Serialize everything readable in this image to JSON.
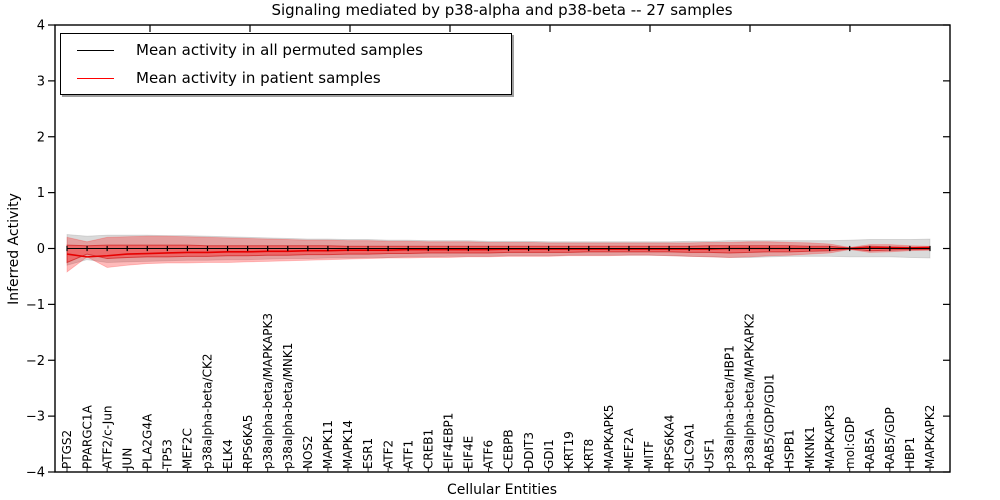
{
  "title": "Signaling mediated by p38-alpha and p38-beta -- 27 samples",
  "axes": {
    "ylabel": "Inferred Activity",
    "xlabel": "Cellular Entities",
    "yticks": [
      4,
      3,
      2,
      1,
      0,
      -1,
      -2,
      -3,
      -4
    ],
    "ylim": [
      -4,
      4
    ]
  },
  "legend": {
    "items": [
      {
        "label": "Mean activity in all permuted samples",
        "color": "#000000"
      },
      {
        "label": "Mean activity in patient samples",
        "color": "#ff0000"
      }
    ],
    "position": "upper left"
  },
  "colors": {
    "permuted_line": "#000000",
    "patient_line": "#e60000",
    "patient_band_fill": "rgba(255,0,0,0.27)",
    "patient_band_inner_fill": "rgba(255,0,0,0.33)",
    "patient_band_inner_stroke": "rgba(200,0,0,0.55)",
    "permuted_band_fill": "rgba(150,150,150,0.35)",
    "spine": "#000000"
  },
  "chart_data": {
    "type": "line",
    "title": "Signaling mediated by p38-alpha and p38-beta -- 27 samples",
    "xlabel": "Cellular Entities",
    "ylabel": "Inferred Activity",
    "ylim": [
      -4,
      4
    ],
    "grid": false,
    "legend_position": "upper left",
    "categories": [
      "PTGS2",
      "PPARGC1A",
      "ATF2/c-Jun",
      "JUN",
      "PLA2G4A",
      "TP53",
      "MEF2C",
      "p38alpha-beta/CK2",
      "ELK4",
      "RPS6KA5",
      "p38alpha-beta/MAPKAPK3",
      "p38alpha-beta/MNK1",
      "NOS2",
      "MAPK11",
      "MAPK14",
      "ESR1",
      "ATF2",
      "ATF1",
      "CREB1",
      "EIF4EBP1",
      "EIF4E",
      "ATF6",
      "CEBPB",
      "DDIT3",
      "GDI1",
      "KRT19",
      "KRT8",
      "MAPKAPK5",
      "MEF2A",
      "MITF",
      "RPS6KA4",
      "SLC9A1",
      "USF1",
      "p38alpha-beta/HBP1",
      "p38alpha-beta/MAPKAPK2",
      "RAB5/GDP/GDI1",
      "HSPB1",
      "MKNK1",
      "MAPKAPK3",
      "mol:GDP",
      "RAB5A",
      "RAB5/GDP",
      "HBP1",
      "MAPKAPK2"
    ],
    "series": [
      {
        "name": "Mean activity in all permuted samples",
        "marker": "|",
        "values": [
          0,
          0,
          0,
          0,
          0,
          0,
          0,
          0,
          0,
          0,
          0,
          0,
          0,
          0,
          0,
          0,
          0,
          0,
          0,
          0,
          0,
          0,
          0,
          0,
          0,
          0,
          0,
          0,
          0,
          0,
          0,
          0,
          0,
          0,
          0,
          0,
          0,
          0,
          0,
          0,
          0,
          0,
          0,
          0
        ]
      },
      {
        "name": "Mean activity in patient samples",
        "marker": "none",
        "values": [
          -0.1,
          -0.15,
          -0.13,
          -0.1,
          -0.09,
          -0.08,
          -0.07,
          -0.07,
          -0.06,
          -0.06,
          -0.05,
          -0.05,
          -0.04,
          -0.04,
          -0.03,
          -0.03,
          -0.03,
          -0.02,
          -0.02,
          -0.02,
          -0.02,
          -0.02,
          -0.01,
          -0.01,
          -0.01,
          -0.01,
          -0.01,
          -0.01,
          -0.01,
          -0.01,
          -0.01,
          -0.01,
          -0.01,
          0.0,
          0.0,
          0.0,
          0.0,
          0.0,
          0.0,
          0.0,
          0.01,
          0.01,
          0.01,
          0.02
        ]
      }
    ],
    "bands": [
      {
        "name": "permuted-range-band",
        "upper": [
          0.25,
          0.22,
          0.24,
          0.24,
          0.24,
          0.23,
          0.23,
          0.22,
          0.21,
          0.2,
          0.19,
          0.18,
          0.17,
          0.17,
          0.16,
          0.16,
          0.15,
          0.15,
          0.14,
          0.14,
          0.14,
          0.13,
          0.13,
          0.13,
          0.12,
          0.12,
          0.12,
          0.12,
          0.12,
          0.12,
          0.12,
          0.13,
          0.13,
          0.14,
          0.14,
          0.14,
          0.14,
          0.14,
          0.14,
          0.15,
          0.16,
          0.16,
          0.16,
          0.17
        ],
        "lower": [
          -0.3,
          -0.2,
          -0.25,
          -0.24,
          -0.23,
          -0.22,
          -0.21,
          -0.21,
          -0.2,
          -0.2,
          -0.19,
          -0.18,
          -0.18,
          -0.17,
          -0.17,
          -0.16,
          -0.16,
          -0.15,
          -0.15,
          -0.14,
          -0.14,
          -0.14,
          -0.13,
          -0.13,
          -0.13,
          -0.12,
          -0.12,
          -0.12,
          -0.12,
          -0.12,
          -0.13,
          -0.14,
          -0.15,
          -0.16,
          -0.16,
          -0.15,
          -0.14,
          -0.14,
          -0.14,
          -0.15,
          -0.15,
          -0.15,
          -0.16,
          -0.17
        ]
      },
      {
        "name": "patient-range-outer-band",
        "upper": [
          0.2,
          0.12,
          0.2,
          0.21,
          0.22,
          0.22,
          0.21,
          0.2,
          0.19,
          0.18,
          0.17,
          0.16,
          0.15,
          0.15,
          0.14,
          0.14,
          0.13,
          0.13,
          0.12,
          0.12,
          0.12,
          0.11,
          0.11,
          0.11,
          0.1,
          0.1,
          0.1,
          0.1,
          0.1,
          0.1,
          0.1,
          0.1,
          0.11,
          0.11,
          0.12,
          0.12,
          0.11,
          0.1,
          0.08,
          0.02,
          0.07,
          0.07,
          0.05,
          0.04
        ],
        "lower": [
          -0.42,
          -0.15,
          -0.34,
          -0.3,
          -0.27,
          -0.26,
          -0.26,
          -0.25,
          -0.25,
          -0.24,
          -0.23,
          -0.22,
          -0.21,
          -0.2,
          -0.19,
          -0.18,
          -0.17,
          -0.17,
          -0.16,
          -0.16,
          -0.15,
          -0.15,
          -0.14,
          -0.14,
          -0.14,
          -0.13,
          -0.13,
          -0.13,
          -0.12,
          -0.12,
          -0.13,
          -0.14,
          -0.15,
          -0.16,
          -0.15,
          -0.13,
          -0.12,
          -0.1,
          -0.08,
          -0.02,
          -0.07,
          -0.06,
          -0.04,
          -0.03
        ]
      },
      {
        "name": "patient-range-inner-band",
        "upper": [
          0.06,
          0.05,
          0.06,
          0.06,
          0.06,
          0.06,
          0.06,
          0.05,
          0.05,
          0.05,
          0.05,
          0.05,
          0.05,
          0.05,
          0.04,
          0.04,
          0.04,
          0.04,
          0.04,
          0.04,
          0.04,
          0.04,
          0.04,
          0.04,
          0.04,
          0.04,
          0.04,
          0.04,
          0.04,
          0.04,
          0.04,
          0.04,
          0.05,
          0.05,
          0.05,
          0.05,
          0.05,
          0.04,
          0.04,
          0.01,
          0.04,
          0.03,
          0.02,
          0.02
        ],
        "lower": [
          -0.25,
          -0.1,
          -0.18,
          -0.16,
          -0.15,
          -0.15,
          -0.14,
          -0.14,
          -0.13,
          -0.13,
          -0.12,
          -0.12,
          -0.11,
          -0.11,
          -0.1,
          -0.1,
          -0.09,
          -0.09,
          -0.08,
          -0.08,
          -0.08,
          -0.08,
          -0.07,
          -0.07,
          -0.07,
          -0.07,
          -0.06,
          -0.06,
          -0.06,
          -0.06,
          -0.06,
          -0.07,
          -0.07,
          -0.08,
          -0.07,
          -0.06,
          -0.06,
          -0.05,
          -0.04,
          -0.01,
          -0.04,
          -0.03,
          -0.02,
          -0.02
        ]
      }
    ]
  }
}
